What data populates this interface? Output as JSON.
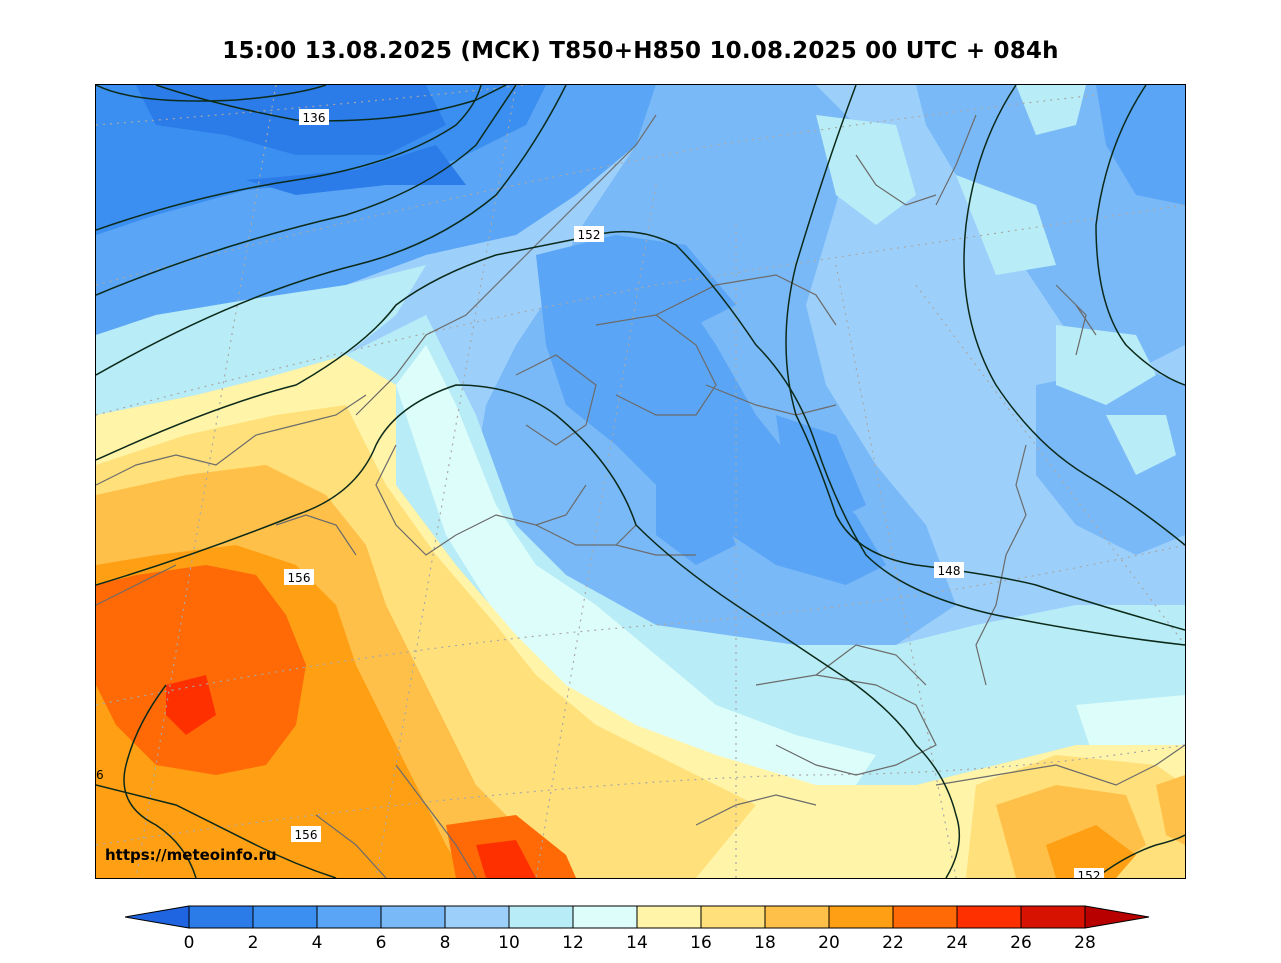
{
  "title": "15:00 13.08.2025 (МСК) T850+H850 10.08.2025 00 UTC + 084h",
  "watermark": "https://meteoinfo.ru",
  "colorbar": {
    "ticks": [
      "0",
      "2",
      "4",
      "6",
      "8",
      "10",
      "12",
      "14",
      "16",
      "18",
      "20",
      "22",
      "24",
      "26",
      "28"
    ],
    "colors": [
      "#1f64e0",
      "#2b7be8",
      "#3b8ff0",
      "#5aa5f5",
      "#7ab9f7",
      "#9cd0fb",
      "#b8ecf6",
      "#ddfdfb",
      "#fff4a8",
      "#ffe07a",
      "#ffc04a",
      "#ff9f14",
      "#ff6a06",
      "#ff3000",
      "#d81200",
      "#b80000"
    ]
  },
  "contour_labels": [
    "136",
    "152",
    "156",
    "148",
    "156",
    "152",
    "6"
  ],
  "colors": {
    "coast": "#6b6b6b",
    "contour": "#0c2a1a",
    "graticule": "#a8a8a8"
  }
}
